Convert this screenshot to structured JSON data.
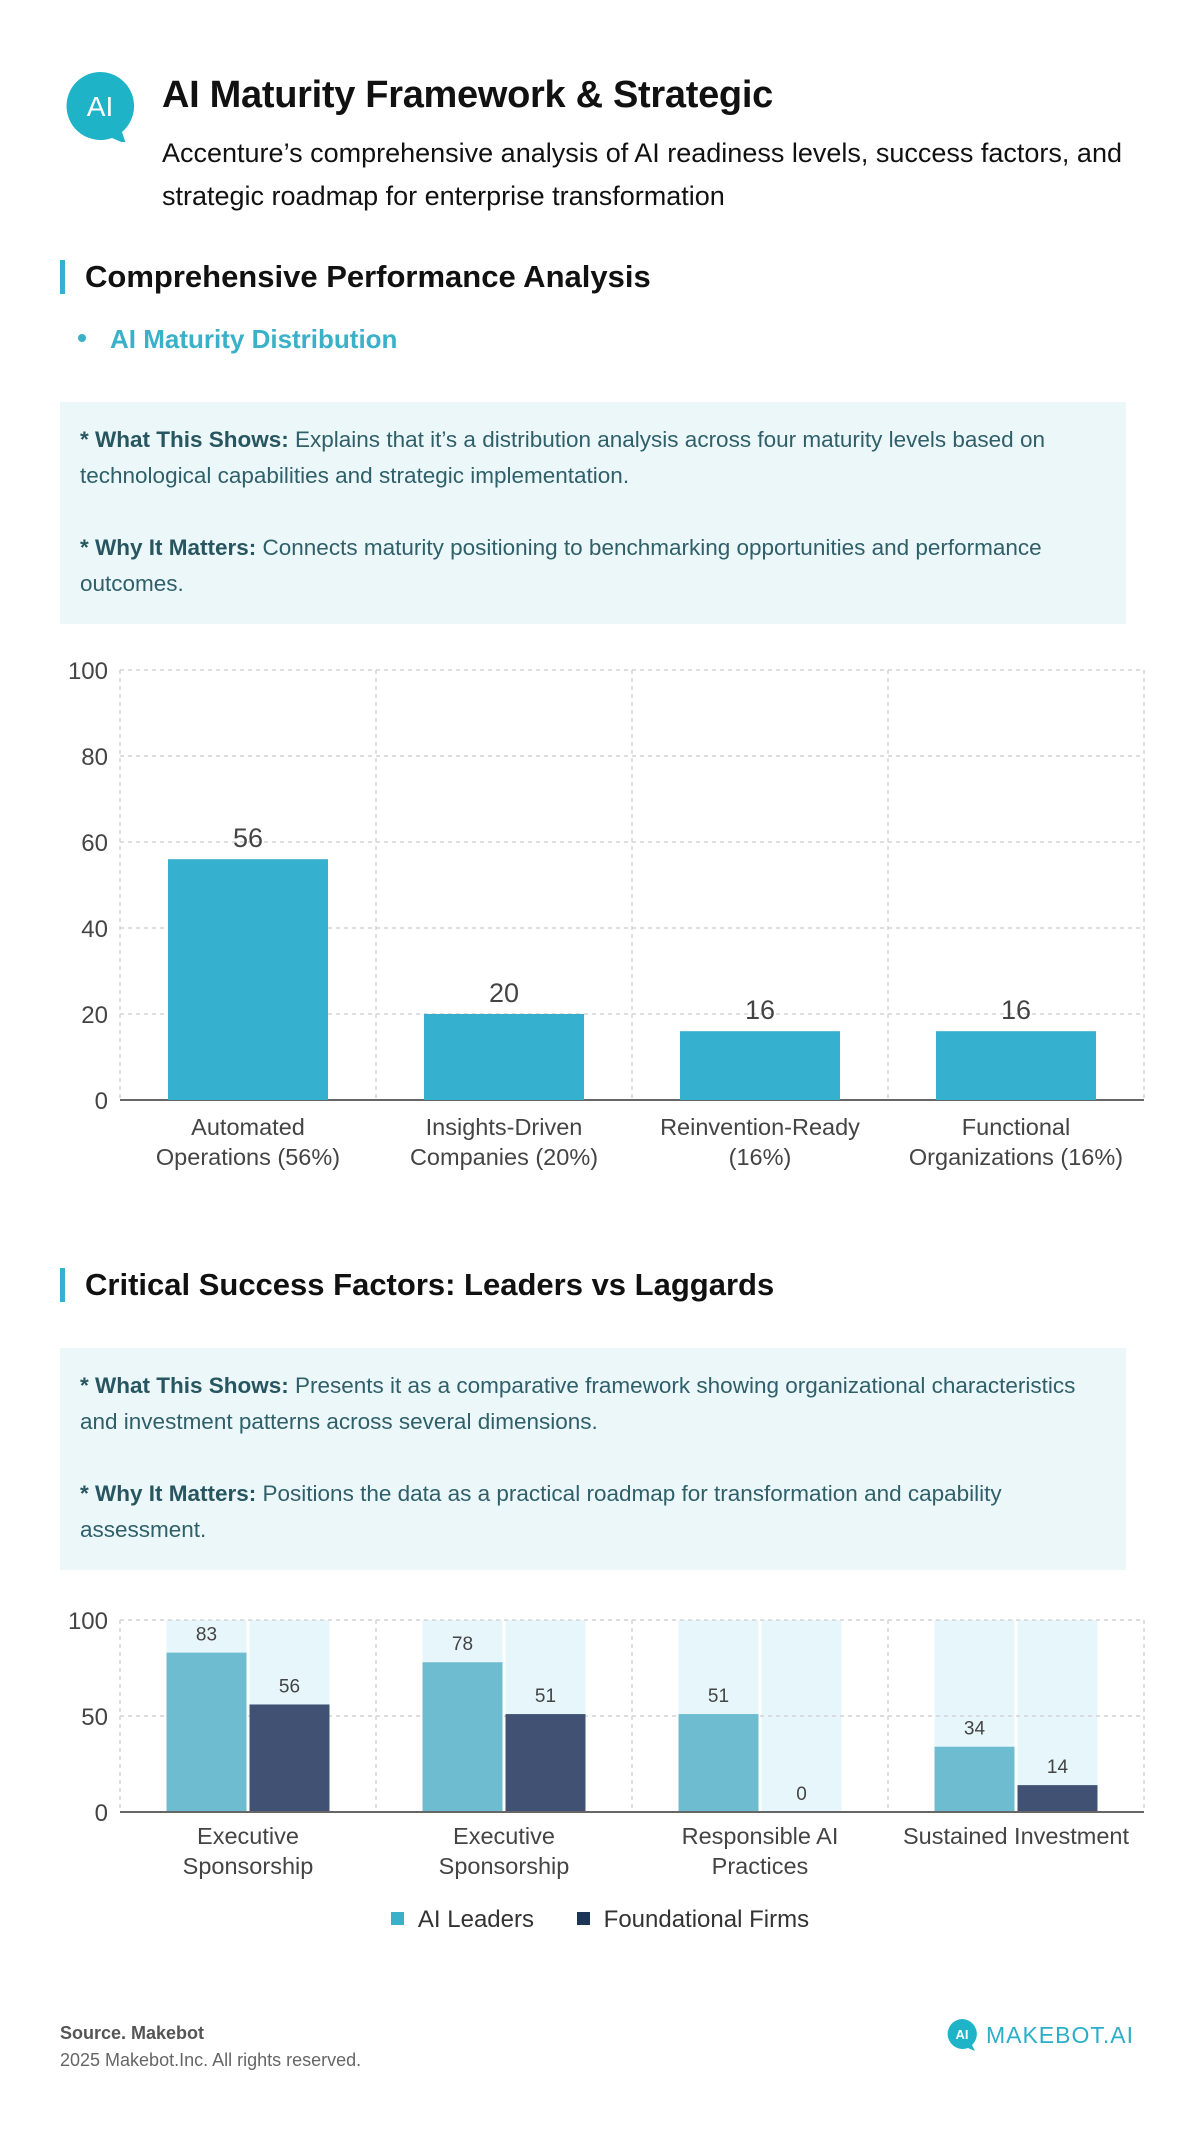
{
  "header": {
    "logo_text": "AI",
    "title": "AI Maturity Framework & Strategic",
    "subtitle": "Accenture’s comprehensive analysis of AI readiness levels, success factors, and strategic roadmap for enterprise transformation"
  },
  "section1": {
    "title": "Comprehensive Performance Analysis",
    "bullet": "AI Maturity Distribution",
    "what_label": "* What This Shows:",
    "what_text": " Explains that it’s a distribution analysis across four maturity levels based on technological capabilities and strategic implementation.",
    "why_label": "* Why It Matters:",
    "why_text": " Connects maturity positioning to benchmarking opportunities and performance outcomes."
  },
  "section2": {
    "title": "Critical Success Factors: Leaders vs Laggards",
    "what_label": "* What This Shows:",
    "what_text": " Presents it as a comparative framework showing organizational characteristics and investment patterns across several dimensions.",
    "why_label": "* Why It Matters:",
    "why_text": " Positions the data as a practical roadmap for transformation and capability assessment."
  },
  "chart_data": [
    {
      "type": "bar",
      "categories": [
        [
          "Automated",
          "Operations (56%)"
        ],
        [
          "Insights-Driven",
          "Companies (20%)"
        ],
        [
          "Reinvention-Ready",
          "(16%)"
        ],
        [
          "Functional",
          "Organizations (16%)"
        ]
      ],
      "values": [
        56,
        20,
        16,
        16
      ],
      "ylim": [
        0,
        100
      ],
      "yticks": [
        0,
        20,
        40,
        60,
        80,
        100
      ],
      "grid": true,
      "color": "#35b1cf"
    },
    {
      "type": "bar",
      "categories": [
        [
          "Executive",
          "Sponsorship"
        ],
        [
          "Executive",
          "Sponsorship"
        ],
        [
          "Responsible AI",
          "Practices"
        ],
        [
          "Sustained Investment"
        ]
      ],
      "series": [
        {
          "name": "AI Leaders",
          "values": [
            83,
            78,
            51,
            34
          ],
          "color": "#6dbccf"
        },
        {
          "name": "Foundational Firms",
          "values": [
            56,
            51,
            0,
            14
          ],
          "color": "#415173"
        }
      ],
      "ylim": [
        0,
        100
      ],
      "yticks": [
        0,
        50,
        100
      ],
      "grid": true,
      "background_color": "#e6f6fa",
      "legend": "bottom-center"
    }
  ],
  "legend": {
    "items": [
      {
        "label": "AI Leaders",
        "color": "#3ab0c9"
      },
      {
        "label": "Foundational Firms",
        "color": "#1d3557"
      }
    ]
  },
  "footer": {
    "source": "Source. Makebot",
    "copyright": "2025 Makebot.Inc. All rights reserved.",
    "brand_badge": "AI",
    "brand": "MAKEBOT.AI"
  }
}
